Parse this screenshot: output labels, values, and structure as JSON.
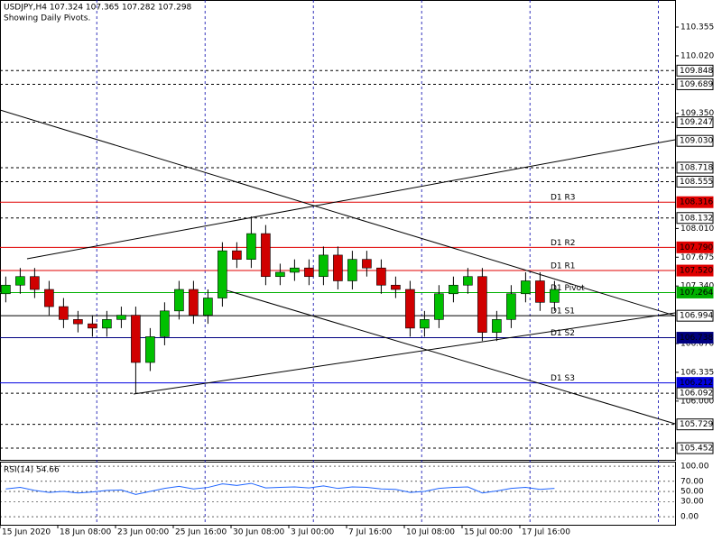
{
  "chart_data": {
    "type": "candlestick",
    "title": "USDJPY,H4  107.324 107.365 107.282 107.298",
    "subtitle": "Showing Daily Pivots.",
    "xlim": [
      0,
      233.75
    ],
    "ylim": [
      105.316,
      110.67
    ],
    "up_color": "#00c000",
    "down_color": "#d00000",
    "xticks": [
      {
        "value": 0,
        "label": "15 Jun 2020"
      },
      {
        "value": 20,
        "label": "18 Jun 08:00"
      },
      {
        "value": 40,
        "label": "23 Jun 00:00"
      },
      {
        "value": 60,
        "label": "25 Jun 16:00"
      },
      {
        "value": 80,
        "label": "30 Jun 08:00"
      },
      {
        "value": 100,
        "label": "3 Jul 00:00"
      },
      {
        "value": 120,
        "label": "7 Jul 16:00"
      },
      {
        "value": 140,
        "label": "10 Jul 08:00"
      },
      {
        "value": 160,
        "label": "15 Jul 00:00"
      },
      {
        "value": 180,
        "label": "17 Jul 16:00"
      }
    ],
    "separators": [
      33.5,
      71,
      108.5,
      146,
      183.5,
      228
    ],
    "yticks": [
      110.355,
      {
        "value": 110.02,
        "label": "110.020"
      },
      {
        "value": 109.35,
        "label": "109.350"
      },
      {
        "value": 108.01,
        "label": "108.010"
      },
      107.675,
      {
        "value": 107.34,
        "label": "107.340"
      },
      {
        "value": 106.67,
        "label": "106.670"
      },
      106.335,
      {
        "value": 106,
        "label": "106.000"
      }
    ],
    "levels": [
      {
        "value": 109.848,
        "color": "#000000",
        "style": "dash"
      },
      {
        "value": 109.689,
        "color": "#000000",
        "style": "dash"
      },
      {
        "value": 109.247,
        "color": "#000000",
        "style": "dash"
      },
      {
        "value": {
          "value": 109.03,
          "label": "109.030"
        },
        "color": "#000000",
        "style": "none"
      },
      {
        "value": 108.718,
        "color": "#000000",
        "style": "dash"
      },
      {
        "value": 108.555,
        "color": "#000000",
        "style": "dash"
      },
      {
        "value": 108.316,
        "color": "#e00000",
        "style": "solid",
        "name": "D1  R3"
      },
      {
        "value": 108.132,
        "color": "#000000",
        "style": "dash"
      },
      {
        "value": {
          "value": 107.79,
          "label": "107.790"
        },
        "color": "#e00000",
        "style": "solid",
        "name": "D1  R2"
      },
      {
        "value": {
          "value": 107.52,
          "label": "107.520"
        },
        "color": "#e00000",
        "style": "solid",
        "name": "D1  R1"
      },
      {
        "value": 107.264,
        "color": "#00b000",
        "style": "solid",
        "name": "D1  Pivot"
      },
      {
        "value": 106.994,
        "color": "#000000",
        "style": "solid",
        "name": "D1  S1"
      },
      {
        "value": 106.738,
        "color": "#000080",
        "style": "solid",
        "name": "D1  S2"
      },
      {
        "value": 106.212,
        "color": "#0000e0",
        "style": "solid",
        "name": "D1  S3"
      },
      {
        "value": 106.092,
        "color": "#000000",
        "style": "dash"
      },
      {
        "value": 105.729,
        "color": "#000000",
        "style": "dash"
      },
      {
        "value": 105.452,
        "color": "#000000",
        "style": "dash"
      }
    ],
    "trendlines": [
      {
        "x": [
          0,
          233.75
        ],
        "y": [
          109.389,
          106.995
        ]
      },
      {
        "x": [
          9.375,
          233.75
        ],
        "y": [
          107.657,
          109.043
        ]
      },
      {
        "x": [
          46.25,
          233.75
        ],
        "y": [
          106.082,
          107.027
        ]
      },
      {
        "x": [
          76.5,
          233.75
        ],
        "y": [
          107.31,
          105.736
        ]
      }
    ],
    "candles": {
      "x": [
        2,
        7,
        12,
        17,
        22,
        27,
        32,
        37,
        42,
        47,
        52,
        57,
        62,
        67,
        72,
        77,
        82,
        87,
        92,
        97,
        102,
        107,
        112,
        117,
        122,
        127,
        132,
        137,
        142,
        147,
        152,
        157,
        162,
        167,
        172,
        177,
        182,
        187,
        192
      ],
      "open": [
        107.25,
        107.35,
        107.45,
        107.3,
        107.1,
        106.95,
        106.9,
        106.85,
        106.95,
        107,
        106.45,
        106.75,
        107.05,
        107.3,
        107,
        107.2,
        107.75,
        107.65,
        107.95,
        107.45,
        107.5,
        107.55,
        107.45,
        107.7,
        107.4,
        107.65,
        107.55,
        107.35,
        107.3,
        106.85,
        106.95,
        107.25,
        107.35,
        107.45,
        106.8,
        106.95,
        107.25,
        107.4,
        107.15
      ],
      "high": [
        107.45,
        107.55,
        107.55,
        107.4,
        107.2,
        107.05,
        107,
        107.05,
        107.1,
        107.1,
        106.85,
        107.15,
        107.4,
        107.4,
        107.3,
        107.85,
        107.85,
        108.15,
        108.05,
        107.6,
        107.65,
        107.65,
        107.8,
        107.8,
        107.75,
        107.75,
        107.65,
        107.45,
        107.4,
        107.05,
        107.35,
        107.45,
        107.55,
        107.55,
        107.05,
        107.35,
        107.5,
        107.5,
        107.4
      ],
      "low": [
        107.15,
        107.25,
        107.2,
        107,
        106.85,
        106.8,
        106.75,
        106.75,
        106.85,
        106.09,
        106.35,
        106.65,
        106.95,
        106.9,
        106.9,
        107.1,
        107.55,
        107.55,
        107.35,
        107.35,
        107.4,
        107.35,
        107.35,
        107.3,
        107.3,
        107.45,
        107.25,
        107.2,
        106.75,
        106.75,
        106.85,
        107.15,
        107.25,
        106.7,
        106.7,
        106.85,
        107.15,
        107.05,
        107.05
      ],
      "close": [
        107.35,
        107.45,
        107.3,
        107.1,
        106.95,
        106.9,
        106.85,
        106.95,
        107,
        106.45,
        106.75,
        107.05,
        107.3,
        107,
        107.2,
        107.75,
        107.65,
        107.95,
        107.45,
        107.5,
        107.55,
        107.45,
        107.7,
        107.4,
        107.65,
        107.55,
        107.35,
        107.3,
        106.85,
        106.95,
        107.25,
        107.35,
        107.45,
        106.8,
        106.95,
        107.25,
        107.4,
        107.15,
        107.3
      ]
    },
    "rsi": {
      "label": "RSI(14) 54.66",
      "color": "#1e64ff",
      "ylim": [
        -16,
        109
      ],
      "yticks": [
        {
          "value": 100,
          "label": "100.00"
        },
        {
          "value": 70,
          "label": "70.00"
        },
        {
          "value": 50,
          "label": "50.00"
        },
        {
          "value": 30,
          "label": "30.00"
        },
        {
          "value": 0,
          "label": "0.00"
        }
      ],
      "values": [
        55,
        58,
        52,
        48,
        50,
        47,
        49,
        52,
        53,
        44,
        50,
        56,
        60,
        55,
        58,
        65,
        62,
        66,
        57,
        58,
        59,
        57,
        61,
        56,
        59,
        58,
        55,
        54,
        48,
        50,
        56,
        58,
        59,
        47,
        51,
        56,
        58,
        54,
        56
      ]
    }
  }
}
